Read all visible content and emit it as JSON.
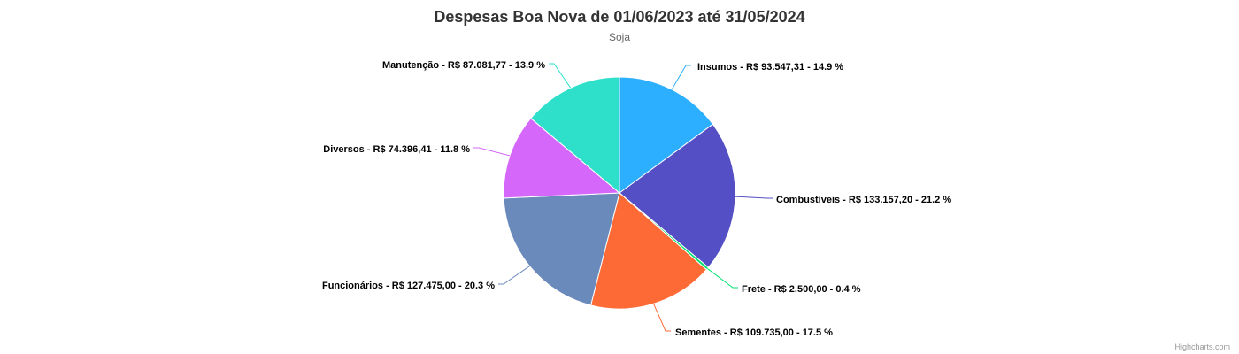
{
  "chart_data": {
    "type": "pie",
    "title": "Despesas Boa Nova de 01/06/2023 até 31/05/2024",
    "subtitle": "Soja",
    "slices": [
      {
        "name": "Insumos",
        "value": 93547.31,
        "value_label": "R$ 93.547,31",
        "percent": 14.9,
        "color": "#2caffe"
      },
      {
        "name": "Combustíveis",
        "value": 133157.2,
        "value_label": "R$ 133.157,20",
        "percent": 21.2,
        "color": "#544fc5"
      },
      {
        "name": "Frete",
        "value": 2500.0,
        "value_label": "R$ 2.500,00",
        "percent": 0.4,
        "color": "#00e272"
      },
      {
        "name": "Sementes",
        "value": 109735.0,
        "value_label": "R$ 109.735,00",
        "percent": 17.5,
        "color": "#fe6a35"
      },
      {
        "name": "Funcionários",
        "value": 127475.0,
        "value_label": "R$ 127.475,00",
        "percent": 20.3,
        "color": "#6b8abc"
      },
      {
        "name": "Diversos",
        "value": 74396.41,
        "value_label": "R$ 74.396,41",
        "percent": 11.8,
        "color": "#d568fb"
      },
      {
        "name": "Manutenção",
        "value": 87081.77,
        "value_label": "R$ 87.081,77",
        "percent": 13.9,
        "color": "#2ee0ca"
      }
    ],
    "credits": "Highcharts.com"
  }
}
